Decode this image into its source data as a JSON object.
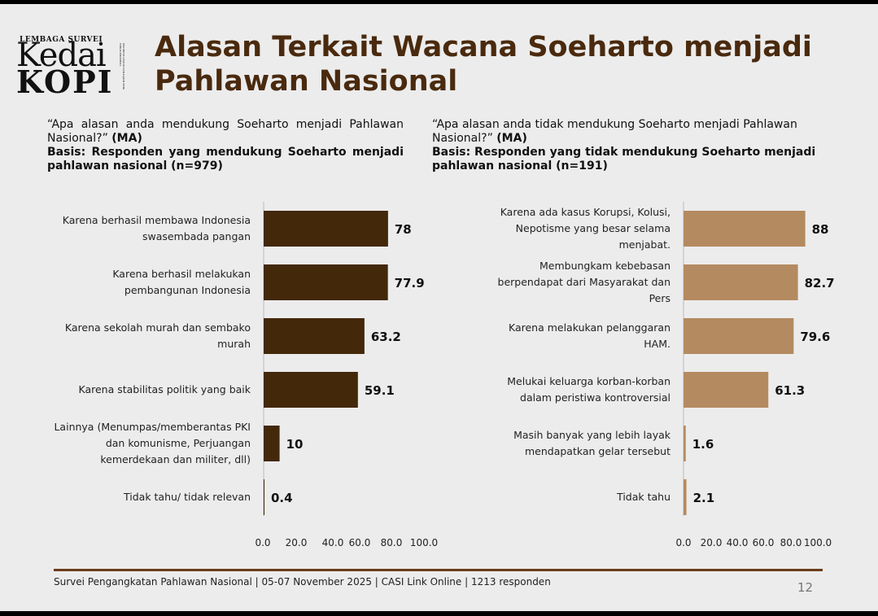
{
  "logo": {
    "top_text": "LEMBAGA SURVEI",
    "word1": "Kedai",
    "word2": "KOPI",
    "tagline": "KELOMPOK DISKUSI DAN KAJIAN OPINI PUBLIK INDONESIA"
  },
  "title": "Alasan Terkait Wacana Soeharto menjadi Pahlawan Nasional",
  "left_panel": {
    "question": "“Apa alasan anda mendukung Soeharto menjadi Pahlawan Nasional?”",
    "ma": "(MA)",
    "basis": "Basis: Responden yang mendukung Soeharto menjadi pahlawan nasional (n=979)"
  },
  "right_panel": {
    "question": "“Apa alasan anda tidak mendukung Soeharto menjadi Pahlawan Nasional?”",
    "ma": "(MA)",
    "basis": "Basis: Responden yang tidak mendukung Soeharto menjadi pahlawan nasional (n=191)"
  },
  "chart_data": [
    {
      "type": "bar",
      "orientation": "horizontal",
      "color": "#43280a",
      "categories": [
        [
          "Karena berhasil membawa Indonesia",
          "swasembada pangan"
        ],
        [
          "Karena berhasil melakukan",
          "pembangunan Indonesia"
        ],
        [
          "Karena sekolah murah dan sembako",
          "murah"
        ],
        [
          "Karena stabilitas politik yang baik"
        ],
        [
          "Lainnya (Menumpas/memberantas PKI",
          "dan komunisme, Perjuangan",
          "kemerdekaan dan militer, dll)"
        ],
        [
          "Tidak tahu/ tidak relevan"
        ]
      ],
      "values": [
        78,
        77.9,
        63.2,
        59.1,
        10,
        0.4
      ],
      "value_labels": [
        "78",
        "77.9",
        "63.2",
        "59.1",
        "10",
        "0.4"
      ],
      "xlim": [
        0,
        100
      ],
      "x_ticks": [
        "0.0",
        "20.0",
        "40.0",
        "60.0",
        "80.0",
        "100.0"
      ]
    },
    {
      "type": "bar",
      "orientation": "horizontal",
      "color": "#b48a60",
      "categories": [
        [
          "Karena ada kasus Korupsi, Kolusi,",
          "Nepotisme yang besar selama",
          "menjabat."
        ],
        [
          "Membungkam kebebasan",
          "berpendapat dari Masyarakat dan",
          "Pers"
        ],
        [
          "Karena melakukan pelanggaran",
          "HAM."
        ],
        [
          "Melukai keluarga korban-korban",
          "dalam peristiwa kontroversial"
        ],
        [
          "Masih banyak yang lebih layak",
          "mendapatkan gelar tersebut"
        ],
        [
          "Tidak tahu"
        ]
      ],
      "values": [
        88,
        82.7,
        79.6,
        61.3,
        1.6,
        2.1
      ],
      "value_labels": [
        "88",
        "82.7",
        "79.6",
        "61.3",
        "1.6",
        "2.1"
      ],
      "xlim": [
        0,
        100
      ],
      "x_ticks": [
        "0.0",
        "20.0",
        "40.0",
        "60.0",
        "80.0",
        "100.0"
      ]
    }
  ],
  "footer": "Survei Pengangkatan Pahlawan Nasional | 05-07 November 2025 | CASI Link Online | 1213 responden",
  "page_number": "12"
}
